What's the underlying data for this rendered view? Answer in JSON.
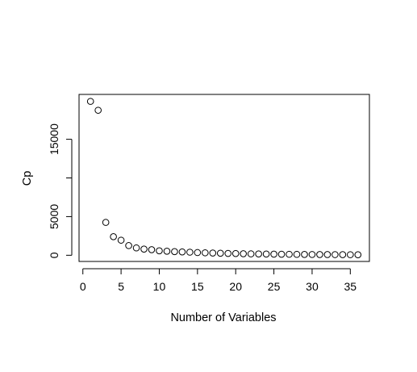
{
  "chart_data": {
    "type": "scatter",
    "title": "",
    "xlabel": "Number of Variables",
    "ylabel": "Cp",
    "xlim": [
      -0.5,
      37.5
    ],
    "ylim": [
      -800,
      20800
    ],
    "grid": false,
    "legend": "none",
    "marker": "open-circle",
    "x_ticks": [
      0,
      5,
      10,
      15,
      20,
      25,
      30,
      35
    ],
    "x_tick_labels": [
      "0",
      "5",
      "10",
      "15",
      "20",
      "25",
      "30",
      "35"
    ],
    "y_ticks": [
      0,
      5000,
      10000,
      15000
    ],
    "y_tick_labels": [
      "0",
      "5000",
      "",
      "15000"
    ],
    "series": [
      {
        "x": [
          1,
          2,
          3,
          4,
          5,
          6,
          7,
          8,
          9,
          10,
          11,
          12,
          13,
          14,
          15,
          16,
          17,
          18,
          19,
          20,
          21,
          22,
          23,
          24,
          25,
          26,
          27,
          28,
          29,
          30,
          31,
          32,
          33,
          34,
          35,
          36
        ],
        "y": [
          19900,
          18750,
          4250,
          2400,
          1950,
          1250,
          950,
          800,
          720,
          580,
          520,
          470,
          430,
          400,
          350,
          320,
          290,
          260,
          240,
          220,
          200,
          180,
          170,
          155,
          145,
          135,
          125,
          115,
          110,
          100,
          95,
          90,
          85,
          80,
          75,
          70
        ]
      }
    ],
    "colors": {
      "marker_stroke": "#000000",
      "marker_fill": "#ffffff",
      "axis": "#000000",
      "text": "#000000"
    }
  }
}
